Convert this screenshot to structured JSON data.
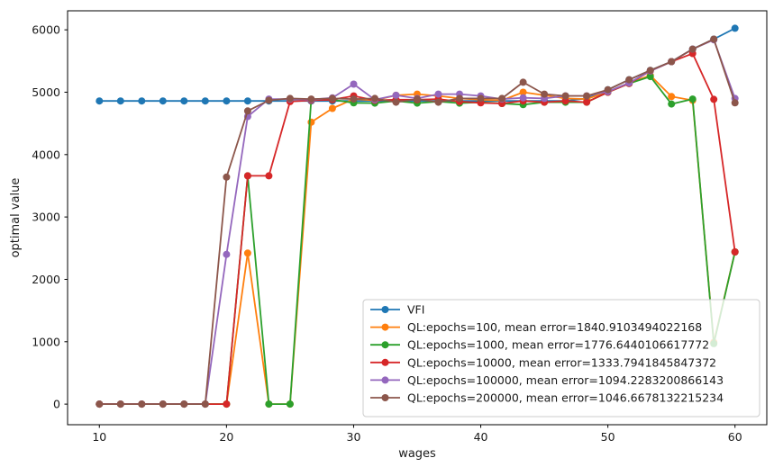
{
  "chart_data": {
    "type": "line",
    "title": "",
    "xlabel": "wages",
    "ylabel": "optimal value",
    "x_ticks": [
      10,
      20,
      30,
      40,
      50,
      60
    ],
    "y_ticks": [
      0,
      1000,
      2000,
      3000,
      4000,
      5000,
      6000
    ],
    "xlim": [
      7.5,
      62.5
    ],
    "ylim": [
      -330,
      6305
    ],
    "grid": false,
    "legend_position": "lower-right-inside",
    "marker": "circle",
    "x": [
      10,
      11.667,
      13.333,
      15,
      16.667,
      18.333,
      20,
      21.667,
      23.333,
      25,
      26.667,
      28.333,
      30,
      31.667,
      33.333,
      35,
      36.667,
      38.333,
      40,
      41.667,
      43.333,
      45,
      46.667,
      48.333,
      50,
      51.667,
      53.333,
      55,
      56.667,
      58.333,
      60
    ],
    "series": [
      {
        "name": "VFI",
        "color": "#1f77b4",
        "values": [
          4860,
          4860,
          4860,
          4860,
          4860,
          4860,
          4860,
          4860,
          4860,
          4860,
          4860,
          4860,
          4860,
          4860,
          4860,
          4860,
          4860,
          4860,
          4860,
          4860,
          4860,
          4860,
          4860,
          4900,
          5040,
          5200,
          5350,
          5490,
          5690,
          5850,
          6025
        ]
      },
      {
        "name": "QL:epochs=100, mean error=1840.9103494022168",
        "color": "#ff7f0e",
        "values": [
          0,
          0,
          0,
          0,
          0,
          0,
          0,
          2420,
          0,
          0,
          4520,
          4740,
          4890,
          4870,
          4950,
          4970,
          4940,
          4900,
          4880,
          4870,
          5000,
          4950,
          4900,
          4890,
          5010,
          5150,
          5270,
          4930,
          4870,
          990,
          2440
        ]
      },
      {
        "name": "QL:epochs=1000, mean error=1776.6440106617772",
        "color": "#2ca02c",
        "values": [
          0,
          0,
          0,
          0,
          0,
          0,
          0,
          3660,
          0,
          0,
          4880,
          4880,
          4830,
          4825,
          4860,
          4825,
          4850,
          4825,
          4840,
          4820,
          4800,
          4840,
          4840,
          4840,
          5000,
          5140,
          5250,
          4810,
          4890,
          970,
          2440
        ]
      },
      {
        "name": "QL:epochs=10000, mean error=1333.7941845847372",
        "color": "#d62728",
        "values": [
          0,
          0,
          0,
          0,
          0,
          0,
          0,
          3660,
          3660,
          4850,
          4870,
          4880,
          4940,
          4870,
          4880,
          4880,
          4890,
          4850,
          4830,
          4820,
          4860,
          4840,
          4860,
          4840,
          5000,
          5140,
          5340,
          5490,
          5620,
          4885,
          2440
        ]
      },
      {
        "name": "QL:epochs=100000, mean error=1094.2283200866143",
        "color": "#9467bd",
        "values": [
          0,
          0,
          0,
          0,
          0,
          0,
          2400,
          4610,
          4890,
          4890,
          4880,
          4910,
          5130,
          4880,
          4950,
          4900,
          4970,
          4970,
          4940,
          4890,
          4910,
          4900,
          4940,
          4940,
          5010,
          5150,
          5340,
          5490,
          5690,
          5840,
          4900
        ]
      },
      {
        "name": "QL:epochs=200000, mean error=1046.6678132215234",
        "color": "#8c564b",
        "values": [
          0,
          0,
          0,
          0,
          0,
          0,
          3640,
          4700,
          4870,
          4900,
          4890,
          4900,
          4890,
          4900,
          4840,
          4890,
          4840,
          4900,
          4900,
          4900,
          5160,
          4970,
          4940,
          4940,
          5040,
          5200,
          5350,
          5490,
          5690,
          5850,
          4830
        ]
      }
    ]
  }
}
